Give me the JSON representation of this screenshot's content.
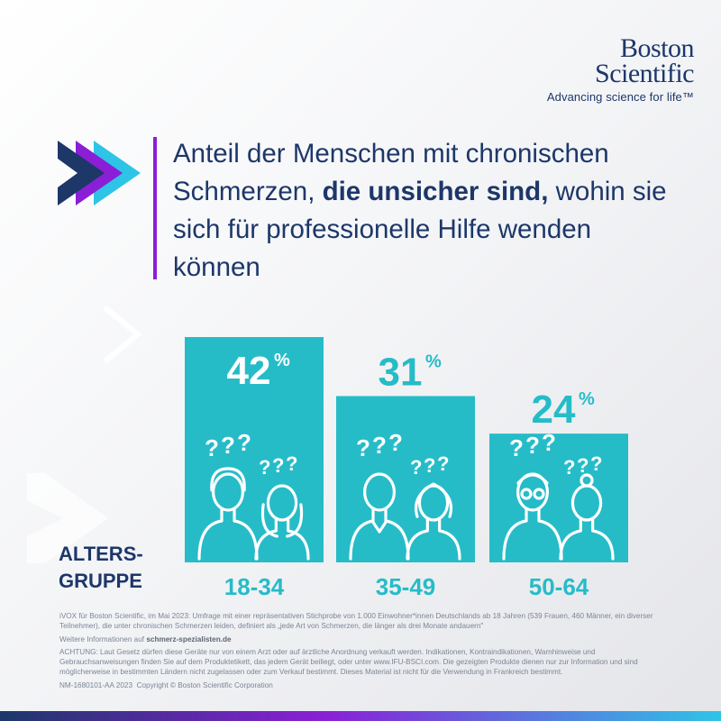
{
  "brand": {
    "name_line1": "Boston",
    "name_line2": "Scientific",
    "tagline": "Advancing science for life™"
  },
  "headline": {
    "part1": "Anteil der Menschen mit chronischen Schmerzen, ",
    "bold": "die unsicher sind,",
    "part2": " wohin sie sich für professionelle Hilfe wenden können"
  },
  "axis_label": {
    "line1": "ALTERS-",
    "line2": "GRUPPE"
  },
  "chart_data": {
    "type": "bar",
    "categories": [
      "18-34",
      "35-49",
      "50-64"
    ],
    "values": [
      42,
      31,
      24
    ],
    "value_suffix": "%",
    "xlabel": "ALTERS- GRUPPE",
    "ylabel": "",
    "ylim": [
      0,
      42
    ],
    "grid": false,
    "legend": "none",
    "bar_color": "#25bcc8"
  },
  "icons": {
    "chevron_colors": [
      "#1d3769",
      "#8a1fd6",
      "#2ec4e6"
    ],
    "bar_icons": [
      "young-couple-icon",
      "adult-couple-icon",
      "senior-couple-icon"
    ]
  },
  "footer": {
    "source": "iVOX für Boston Scientific, im Mai 2023: Umfrage mit einer repräsentativen Stichprobe von 1.000 Einwohner*innen Deutschlands ab 18 Jahren (539 Frauen, 460 Männer, ein diverser Teilnehmer), die unter chronischen Schmerzen leiden, definiert als „jede Art von Schmerzen, die länger als drei Monate andauern\"",
    "info_prefix": "Weitere Informationen auf ",
    "info_site": "schmerz-spezialisten.de",
    "warning": "ACHTUNG: Laut Gesetz dürfen diese Geräte nur von einem Arzt oder auf ärztliche Anordnung verkauft werden. Indikationen, Kontraindikationen, Warnhinweise und Gebrauchsanweisungen finden Sie auf dem Produktetikett, das jedem Gerät beiliegt, oder unter www.IFU-BSCI.com. Die gezeigten Produkte dienen nur zur Information und sind möglicherweise in bestimmten Ländern nicht zugelassen oder zum Verkauf bestimmt. Dieses Material ist nicht für die Verwendung in Frankreich bestimmt.",
    "code": "NM-1680101-AA 2023",
    "copyright": "Copyright © Boston Scientific Corporation"
  }
}
